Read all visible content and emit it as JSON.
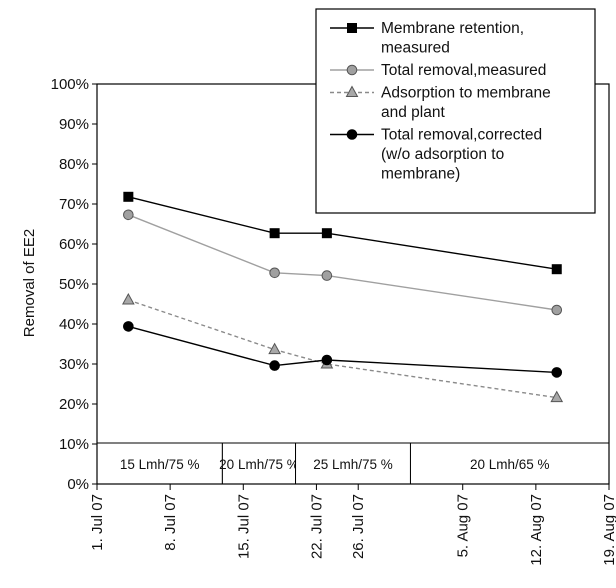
{
  "chart_data": {
    "type": "line",
    "ylabel": "Removal of EE2",
    "xlabel": "",
    "title": "",
    "ylim": [
      0,
      100
    ],
    "y_ticks": [
      "0%",
      "10%",
      "20%",
      "30%",
      "40%",
      "50%",
      "60%",
      "70%",
      "80%",
      "90%",
      "100%"
    ],
    "x_range": [
      "2007-07-01",
      "2007-08-19"
    ],
    "x_ticks": [
      {
        "date": "2007-07-01",
        "label": "1. Jul 07"
      },
      {
        "date": "2007-07-08",
        "label": "8. Jul 07"
      },
      {
        "date": "2007-07-15",
        "label": "15. Jul 07"
      },
      {
        "date": "2007-07-22",
        "label": "22. Jul 07"
      },
      {
        "date": "2007-07-26",
        "label": "26. Jul 07"
      },
      {
        "date": "2007-08-05",
        "label": "5. Aug 07"
      },
      {
        "date": "2007-08-12",
        "label": "12. Aug 07"
      },
      {
        "date": "2007-08-19",
        "label": "19. Aug 07"
      }
    ],
    "legend_position": "top-right",
    "series": [
      {
        "name": "Membrane retention, measured",
        "legend_lines": [
          "Membrane retention,",
          "measured"
        ],
        "marker": "square",
        "line_style": "solid",
        "color": "#000000",
        "marker_fill": "#000000",
        "points": [
          [
            "2007-07-04",
            71.8
          ],
          [
            "2007-07-18",
            62.7
          ],
          [
            "2007-07-23",
            62.7
          ],
          [
            "2007-08-14",
            53.7
          ]
        ]
      },
      {
        "name": "Total removal,measured",
        "legend_lines": [
          "Total removal,measured"
        ],
        "marker": "circle",
        "line_style": "solid",
        "color": "#a0a0a0",
        "marker_fill": "#a0a0a0",
        "points": [
          [
            "2007-07-04",
            67.3
          ],
          [
            "2007-07-18",
            52.8
          ],
          [
            "2007-07-23",
            52.1
          ],
          [
            "2007-08-14",
            43.5
          ]
        ]
      },
      {
        "name": "Adsorption to membrane and plant",
        "legend_lines": [
          "Adsorption to membrane",
          "and plant"
        ],
        "marker": "triangle",
        "line_style": "dashed",
        "color": "#8a8a8a",
        "marker_fill": "#a8a8a8",
        "points": [
          [
            "2007-07-04",
            46.0
          ],
          [
            "2007-07-18",
            33.6
          ],
          [
            "2007-07-23",
            30.0
          ],
          [
            "2007-08-14",
            21.6
          ]
        ]
      },
      {
        "name": "Total removal,corrected (w/o adsorption to membrane)",
        "legend_lines": [
          "Total removal,corrected",
          "(w/o adsorption to",
          "membrane)"
        ],
        "marker": "circle",
        "line_style": "solid",
        "color": "#000000",
        "marker_fill": "#000000",
        "points": [
          [
            "2007-07-04",
            39.4
          ],
          [
            "2007-07-18",
            29.6
          ],
          [
            "2007-07-23",
            31.0
          ],
          [
            "2007-08-14",
            27.9
          ]
        ]
      }
    ],
    "phases": [
      {
        "label": "15 Lmh/75 %",
        "start": "2007-07-01",
        "end": "2007-07-13"
      },
      {
        "label": "20 Lmh/75 %",
        "start": "2007-07-13",
        "end": "2007-07-20"
      },
      {
        "label": "25 Lmh/75 %",
        "start": "2007-07-20",
        "end": "2007-07-31"
      },
      {
        "label": "20 Lmh/65 %",
        "start": "2007-07-31",
        "end": "2007-08-19"
      }
    ]
  }
}
